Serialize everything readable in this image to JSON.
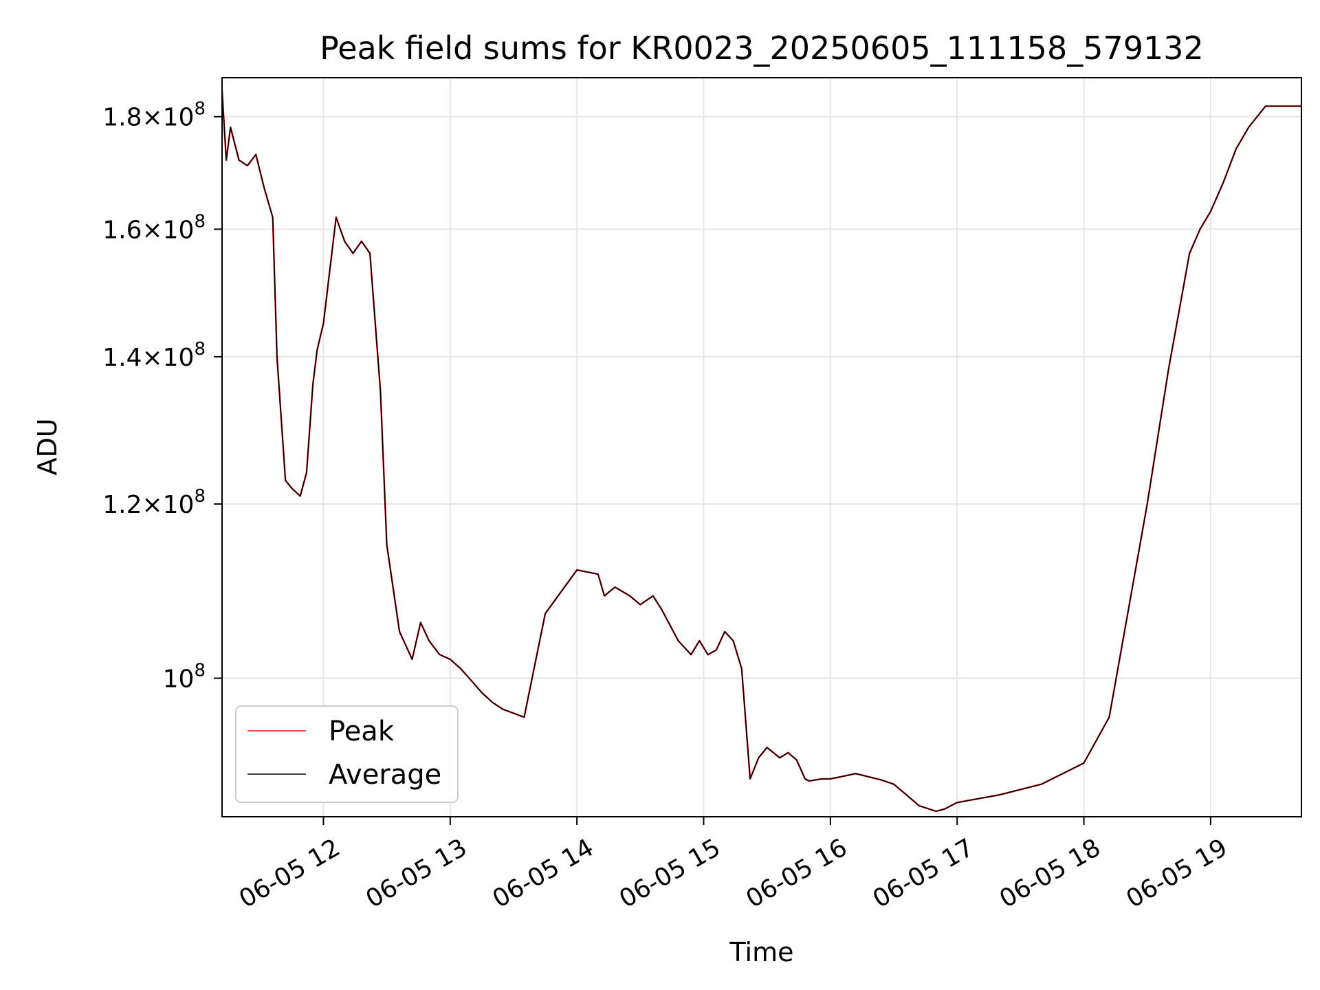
{
  "chart_data": {
    "type": "line",
    "title": "Peak field sums for KR0023_20250605_111158_579132",
    "xlabel": "Time",
    "ylabel": "ADU",
    "yscale": "log",
    "grid": true,
    "legend_position": "lower-left",
    "xlim": [
      "2025-06-05 11:12",
      "2025-06-05 19:43"
    ],
    "ylim": [
      86500000,
      187500000
    ],
    "x_ticks": [
      {
        "value": "2025-06-05 12:00",
        "label": "06-05 12"
      },
      {
        "value": "2025-06-05 13:00",
        "label": "06-05 13"
      },
      {
        "value": "2025-06-05 14:00",
        "label": "06-05 14"
      },
      {
        "value": "2025-06-05 15:00",
        "label": "06-05 15"
      },
      {
        "value": "2025-06-05 16:00",
        "label": "06-05 16"
      },
      {
        "value": "2025-06-05 17:00",
        "label": "06-05 17"
      },
      {
        "value": "2025-06-05 18:00",
        "label": "06-05 18"
      },
      {
        "value": "2025-06-05 19:00",
        "label": "06-05 19"
      }
    ],
    "y_ticks": [
      {
        "value": 100000000,
        "mantissa": "",
        "exponent": "8"
      },
      {
        "value": 120000000,
        "mantissa": "1.2",
        "exponent": "8"
      },
      {
        "value": 140000000,
        "mantissa": "1.4",
        "exponent": "8"
      },
      {
        "value": 160000000,
        "mantissa": "1.6",
        "exponent": "8"
      },
      {
        "value": 180000000,
        "mantissa": "1.8",
        "exponent": "8"
      }
    ],
    "y_tick_base": "10",
    "y_tick_times": "×",
    "x": [
      "2025-06-05 11:12",
      "2025-06-05 11:14",
      "2025-06-05 11:16",
      "2025-06-05 11:20",
      "2025-06-05 11:24",
      "2025-06-05 11:28",
      "2025-06-05 11:32",
      "2025-06-05 11:36",
      "2025-06-05 11:38",
      "2025-06-05 11:42",
      "2025-06-05 11:45",
      "2025-06-05 11:49",
      "2025-06-05 11:52",
      "2025-06-05 11:55",
      "2025-06-05 11:57",
      "2025-06-05 12:00",
      "2025-06-05 12:06",
      "2025-06-05 12:10",
      "2025-06-05 12:14",
      "2025-06-05 12:18",
      "2025-06-05 12:22",
      "2025-06-05 12:27",
      "2025-06-05 12:30",
      "2025-06-05 12:36",
      "2025-06-05 12:42",
      "2025-06-05 12:46",
      "2025-06-05 12:50",
      "2025-06-05 12:55",
      "2025-06-05 13:00",
      "2025-06-05 13:05",
      "2025-06-05 13:09",
      "2025-06-05 13:15",
      "2025-06-05 13:20",
      "2025-06-05 13:25",
      "2025-06-05 13:30",
      "2025-06-05 13:35",
      "2025-06-05 13:45",
      "2025-06-05 14:00",
      "2025-06-05 14:10",
      "2025-06-05 14:13",
      "2025-06-05 14:18",
      "2025-06-05 14:25",
      "2025-06-05 14:30",
      "2025-06-05 14:36",
      "2025-06-05 14:40",
      "2025-06-05 14:48",
      "2025-06-05 14:54",
      "2025-06-05 14:58",
      "2025-06-05 15:02",
      "2025-06-05 15:06",
      "2025-06-05 15:10",
      "2025-06-05 15:14",
      "2025-06-05 15:18",
      "2025-06-05 15:22",
      "2025-06-05 15:26",
      "2025-06-05 15:30",
      "2025-06-05 15:36",
      "2025-06-05 15:40",
      "2025-06-05 15:44",
      "2025-06-05 15:48",
      "2025-06-05 15:50",
      "2025-06-05 15:53",
      "2025-06-05 15:56",
      "2025-06-05 16:00",
      "2025-06-05 16:05",
      "2025-06-05 16:12",
      "2025-06-05 16:18",
      "2025-06-05 16:24",
      "2025-06-05 16:30",
      "2025-06-05 16:36",
      "2025-06-05 16:42",
      "2025-06-05 16:50",
      "2025-06-05 16:54",
      "2025-06-05 17:00",
      "2025-06-05 17:20",
      "2025-06-05 17:40",
      "2025-06-05 18:00",
      "2025-06-05 18:12",
      "2025-06-05 18:20",
      "2025-06-05 18:30",
      "2025-06-05 18:40",
      "2025-06-05 18:50",
      "2025-06-05 18:55",
      "2025-06-05 19:00",
      "2025-06-05 19:06",
      "2025-06-05 19:12",
      "2025-06-05 19:18",
      "2025-06-05 19:22",
      "2025-06-05 19:26",
      "2025-06-05 19:30",
      "2025-06-05 19:34",
      "2025-06-05 19:38",
      "2025-06-05 19:40",
      "2025-06-05 19:43"
    ],
    "series": [
      {
        "name": "Peak",
        "color": "#ff0000",
        "values": [
          185000000,
          172000000,
          178000000,
          172000000,
          171000000,
          173000000,
          167000000,
          162000000,
          140000000,
          123000000,
          122000000,
          121000000,
          124000000,
          136000000,
          141000000,
          145000000,
          162000000,
          158000000,
          156000000,
          158000000,
          156000000,
          135000000,
          115000000,
          105000000,
          102000000,
          106000000,
          104000000,
          102500000,
          102000000,
          101000000,
          100000000,
          98500000,
          97500000,
          96800000,
          96400000,
          96000000,
          107000000,
          112000000,
          111500000,
          109000000,
          110000000,
          109000000,
          108000000,
          109000000,
          107500000,
          104000000,
          102500000,
          104000000,
          102500000,
          103000000,
          105000000,
          104000000,
          101000000,
          90000000,
          92000000,
          93000000,
          92000000,
          92500000,
          91800000,
          90000000,
          89800000,
          89900000,
          90000000,
          90000000,
          90200000,
          90500000,
          90200000,
          89900000,
          89500000,
          88500000,
          87500000,
          87000000,
          87200000,
          87800000,
          88500000,
          89500000,
          91500000,
          96000000,
          106000000,
          120000000,
          138000000,
          156000000,
          160000000,
          163000000,
          168000000,
          174000000,
          178000000,
          180000000,
          182000000,
          182000000,
          182000000,
          182000000,
          182000000,
          182000000
        ]
      },
      {
        "name": "Average",
        "color": "#000000",
        "values": [
          185000000,
          172000000,
          178000000,
          172000000,
          171000000,
          173000000,
          167000000,
          162000000,
          140000000,
          123000000,
          122000000,
          121000000,
          124000000,
          136000000,
          141000000,
          145000000,
          162000000,
          158000000,
          156000000,
          158000000,
          156000000,
          135000000,
          115000000,
          105000000,
          102000000,
          106000000,
          104000000,
          102500000,
          102000000,
          101000000,
          100000000,
          98500000,
          97500000,
          96800000,
          96400000,
          96000000,
          107000000,
          112000000,
          111500000,
          109000000,
          110000000,
          109000000,
          108000000,
          109000000,
          107500000,
          104000000,
          102500000,
          104000000,
          102500000,
          103000000,
          105000000,
          104000000,
          101000000,
          90000000,
          92000000,
          93000000,
          92000000,
          92500000,
          91800000,
          90000000,
          89800000,
          89900000,
          90000000,
          90000000,
          90200000,
          90500000,
          90200000,
          89900000,
          89500000,
          88500000,
          87500000,
          87000000,
          87200000,
          87800000,
          88500000,
          89500000,
          91500000,
          96000000,
          106000000,
          120000000,
          138000000,
          156000000,
          160000000,
          163000000,
          168000000,
          174000000,
          178000000,
          180000000,
          182000000,
          182000000,
          182000000,
          182000000,
          182000000,
          182000000
        ]
      }
    ]
  }
}
